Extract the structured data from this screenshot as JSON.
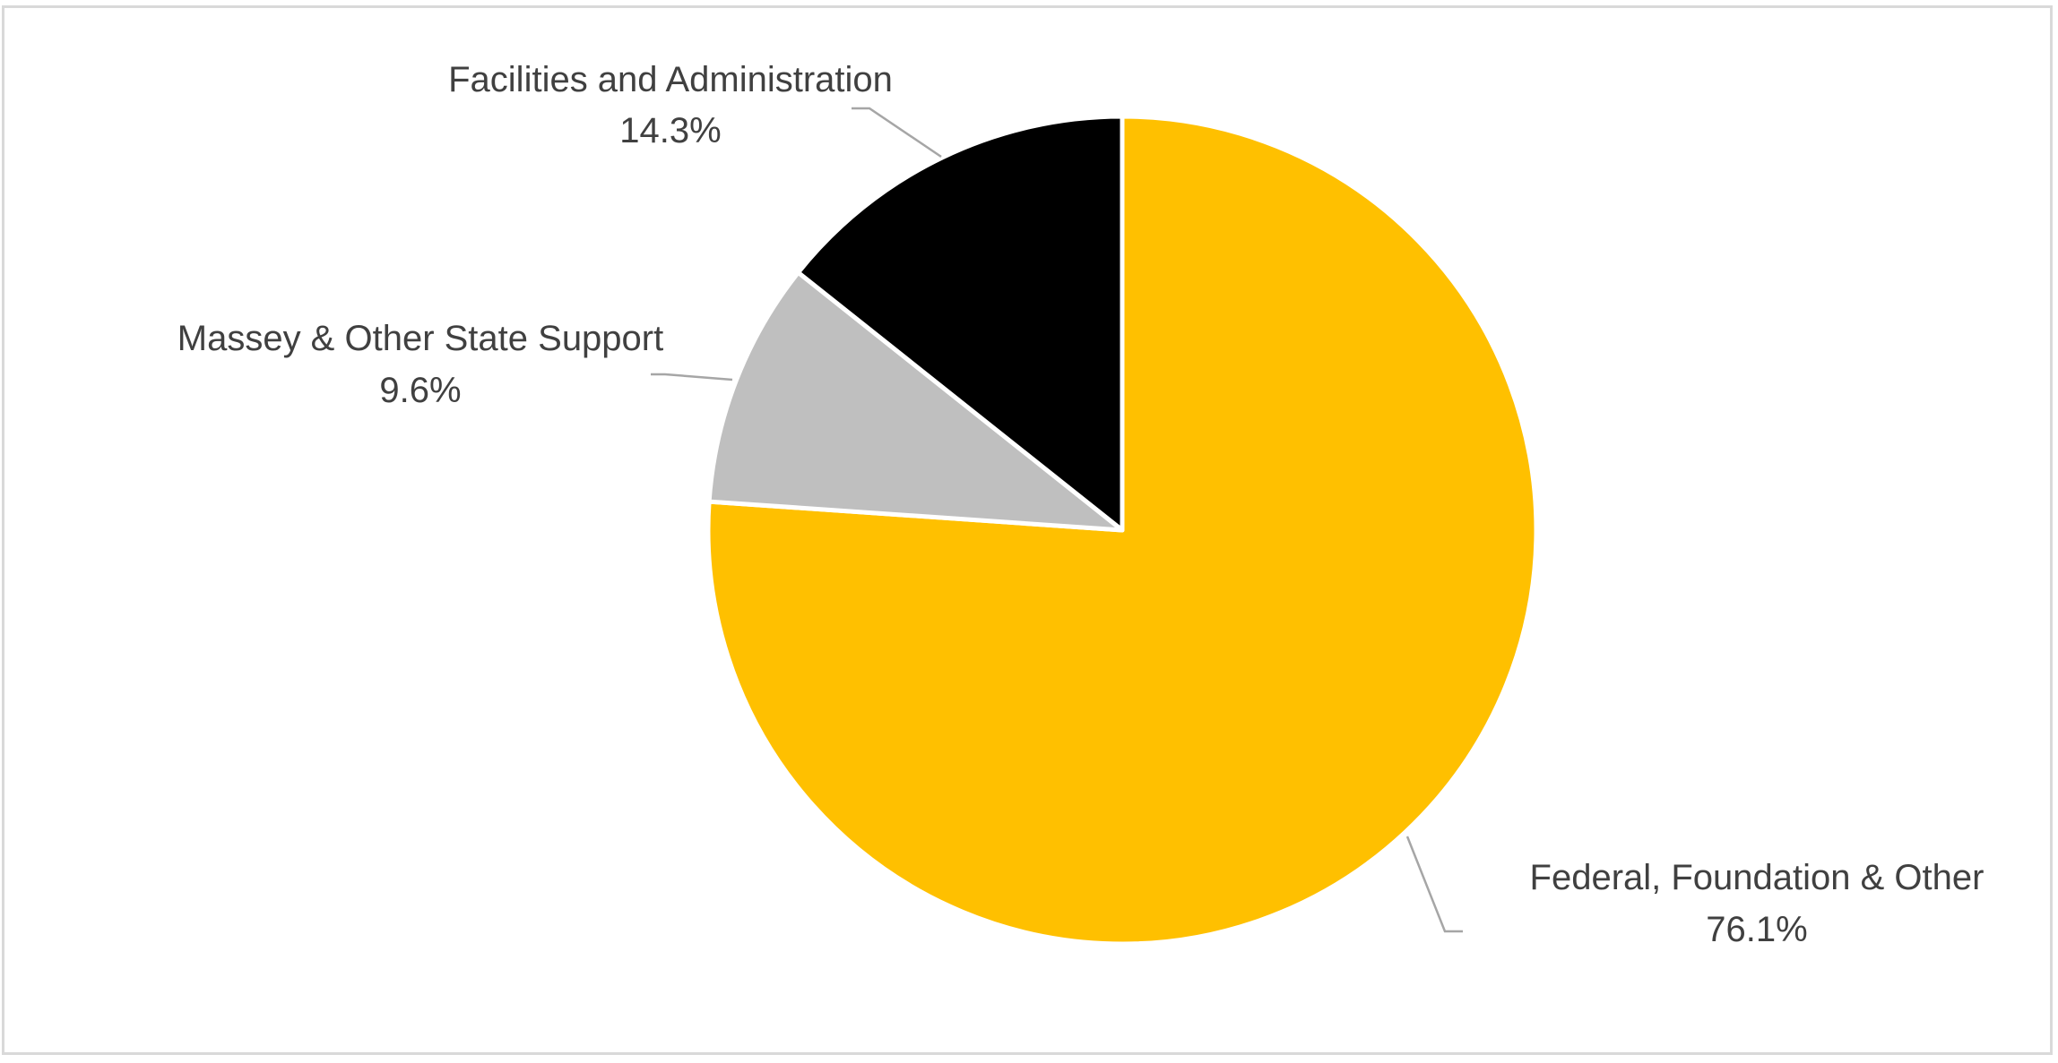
{
  "chart_data": {
    "type": "pie",
    "title": "",
    "start_angle_deg": 0,
    "direction": "clockwise",
    "slices": [
      {
        "label": "Federal, Foundation & Other",
        "value": 76.1,
        "display": "76.1%",
        "color": "#FFC000"
      },
      {
        "label": "Massey & Other State Support",
        "value": 9.6,
        "display": "9.6%",
        "color": "#BFBFBF"
      },
      {
        "label": "Facilities and Administration",
        "value": 14.3,
        "display": "14.3%",
        "color": "#000000"
      }
    ],
    "slice_border_color": "#FFFFFF",
    "leader_line_color": "#A6A6A6",
    "frame_border_color": "#D9D9D9",
    "legend": "none"
  }
}
